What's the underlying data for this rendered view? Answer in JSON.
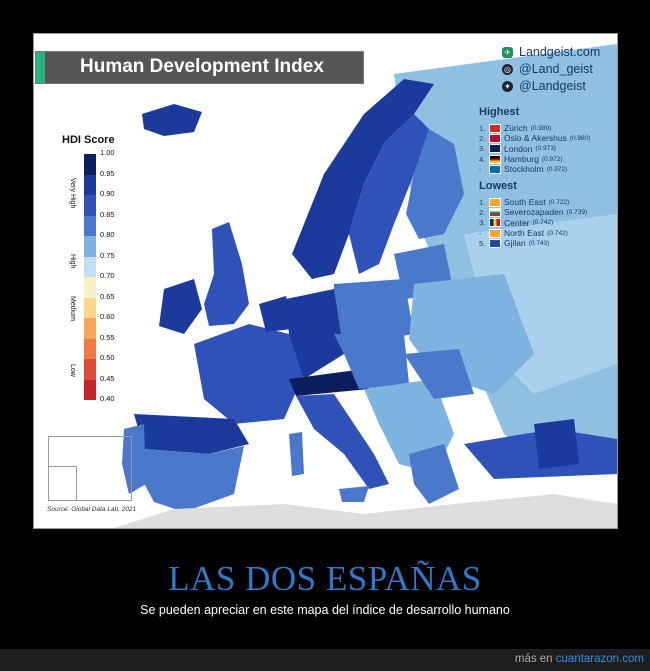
{
  "map": {
    "title": "Human Development Index",
    "social": [
      {
        "icon": "globe-icon",
        "text": "Landgeist.com"
      },
      {
        "icon": "instagram-icon",
        "text": "@Land_geist"
      },
      {
        "icon": "twitter-icon",
        "text": "@Landgeist"
      }
    ],
    "legend": {
      "title": "HDI Score",
      "ticks": [
        "1.00",
        "0.95",
        "0.90",
        "0.85",
        "0.80",
        "0.75",
        "0.70",
        "0.65",
        "0.60",
        "0.55",
        "0.50",
        "0.45",
        "0.40"
      ],
      "colors": [
        "#0b1f5e",
        "#1c3a9c",
        "#2f52b8",
        "#4a79cc",
        "#7fb3df",
        "#c4dff0",
        "#f6f2c6",
        "#fbd58c",
        "#f7a65a",
        "#ee7b46",
        "#e04a36",
        "#c8232c",
        "#9b0f22"
      ],
      "groups": [
        "Very High",
        "High",
        "Medium",
        "Low"
      ]
    },
    "highest": {
      "heading": "Highest",
      "items": [
        {
          "rank": "1.",
          "name": "Zürich",
          "value": "(0.989)",
          "flag": "#d52b1e"
        },
        {
          "rank": "2.",
          "name": "Oslo & Akershus",
          "value": "(0.980)",
          "flag": "#ba0c2f"
        },
        {
          "rank": "3.",
          "name": "London",
          "value": "(0.973)",
          "flag": "#012169"
        },
        {
          "rank": "4.",
          "name": "Hamburg",
          "value": "(0.972)",
          "flag": "#dd0000"
        },
        {
          "rank": "-",
          "name": "Stockholm",
          "value": "(0.972)",
          "flag": "#006aa7"
        }
      ]
    },
    "lowest": {
      "heading": "Lowest",
      "items": [
        {
          "rank": "1.",
          "name": "South East",
          "value": "(0.722)",
          "flag": "#f5a623"
        },
        {
          "rank": "2.",
          "name": "Severozapaden",
          "value": "(0.739)",
          "flag": "#00966e"
        },
        {
          "rank": "3.",
          "name": "Center",
          "value": "(0.742)",
          "flag": "#d0021b"
        },
        {
          "rank": "-",
          "name": "North East",
          "value": "(0.742)",
          "flag": "#f5a623"
        },
        {
          "rank": "5.",
          "name": "Gjilan",
          "value": "(0.743)",
          "flag": "#244aa5"
        }
      ]
    },
    "source": "Source: Global Data Lab, 2021"
  },
  "caption": "LAS DOS ESPAÑAS",
  "subcaption": "Se pueden apreciar en este mapa del índice de desarrollo humano",
  "footer": {
    "prefix": "más en",
    "link": "cuantarazon.com"
  }
}
